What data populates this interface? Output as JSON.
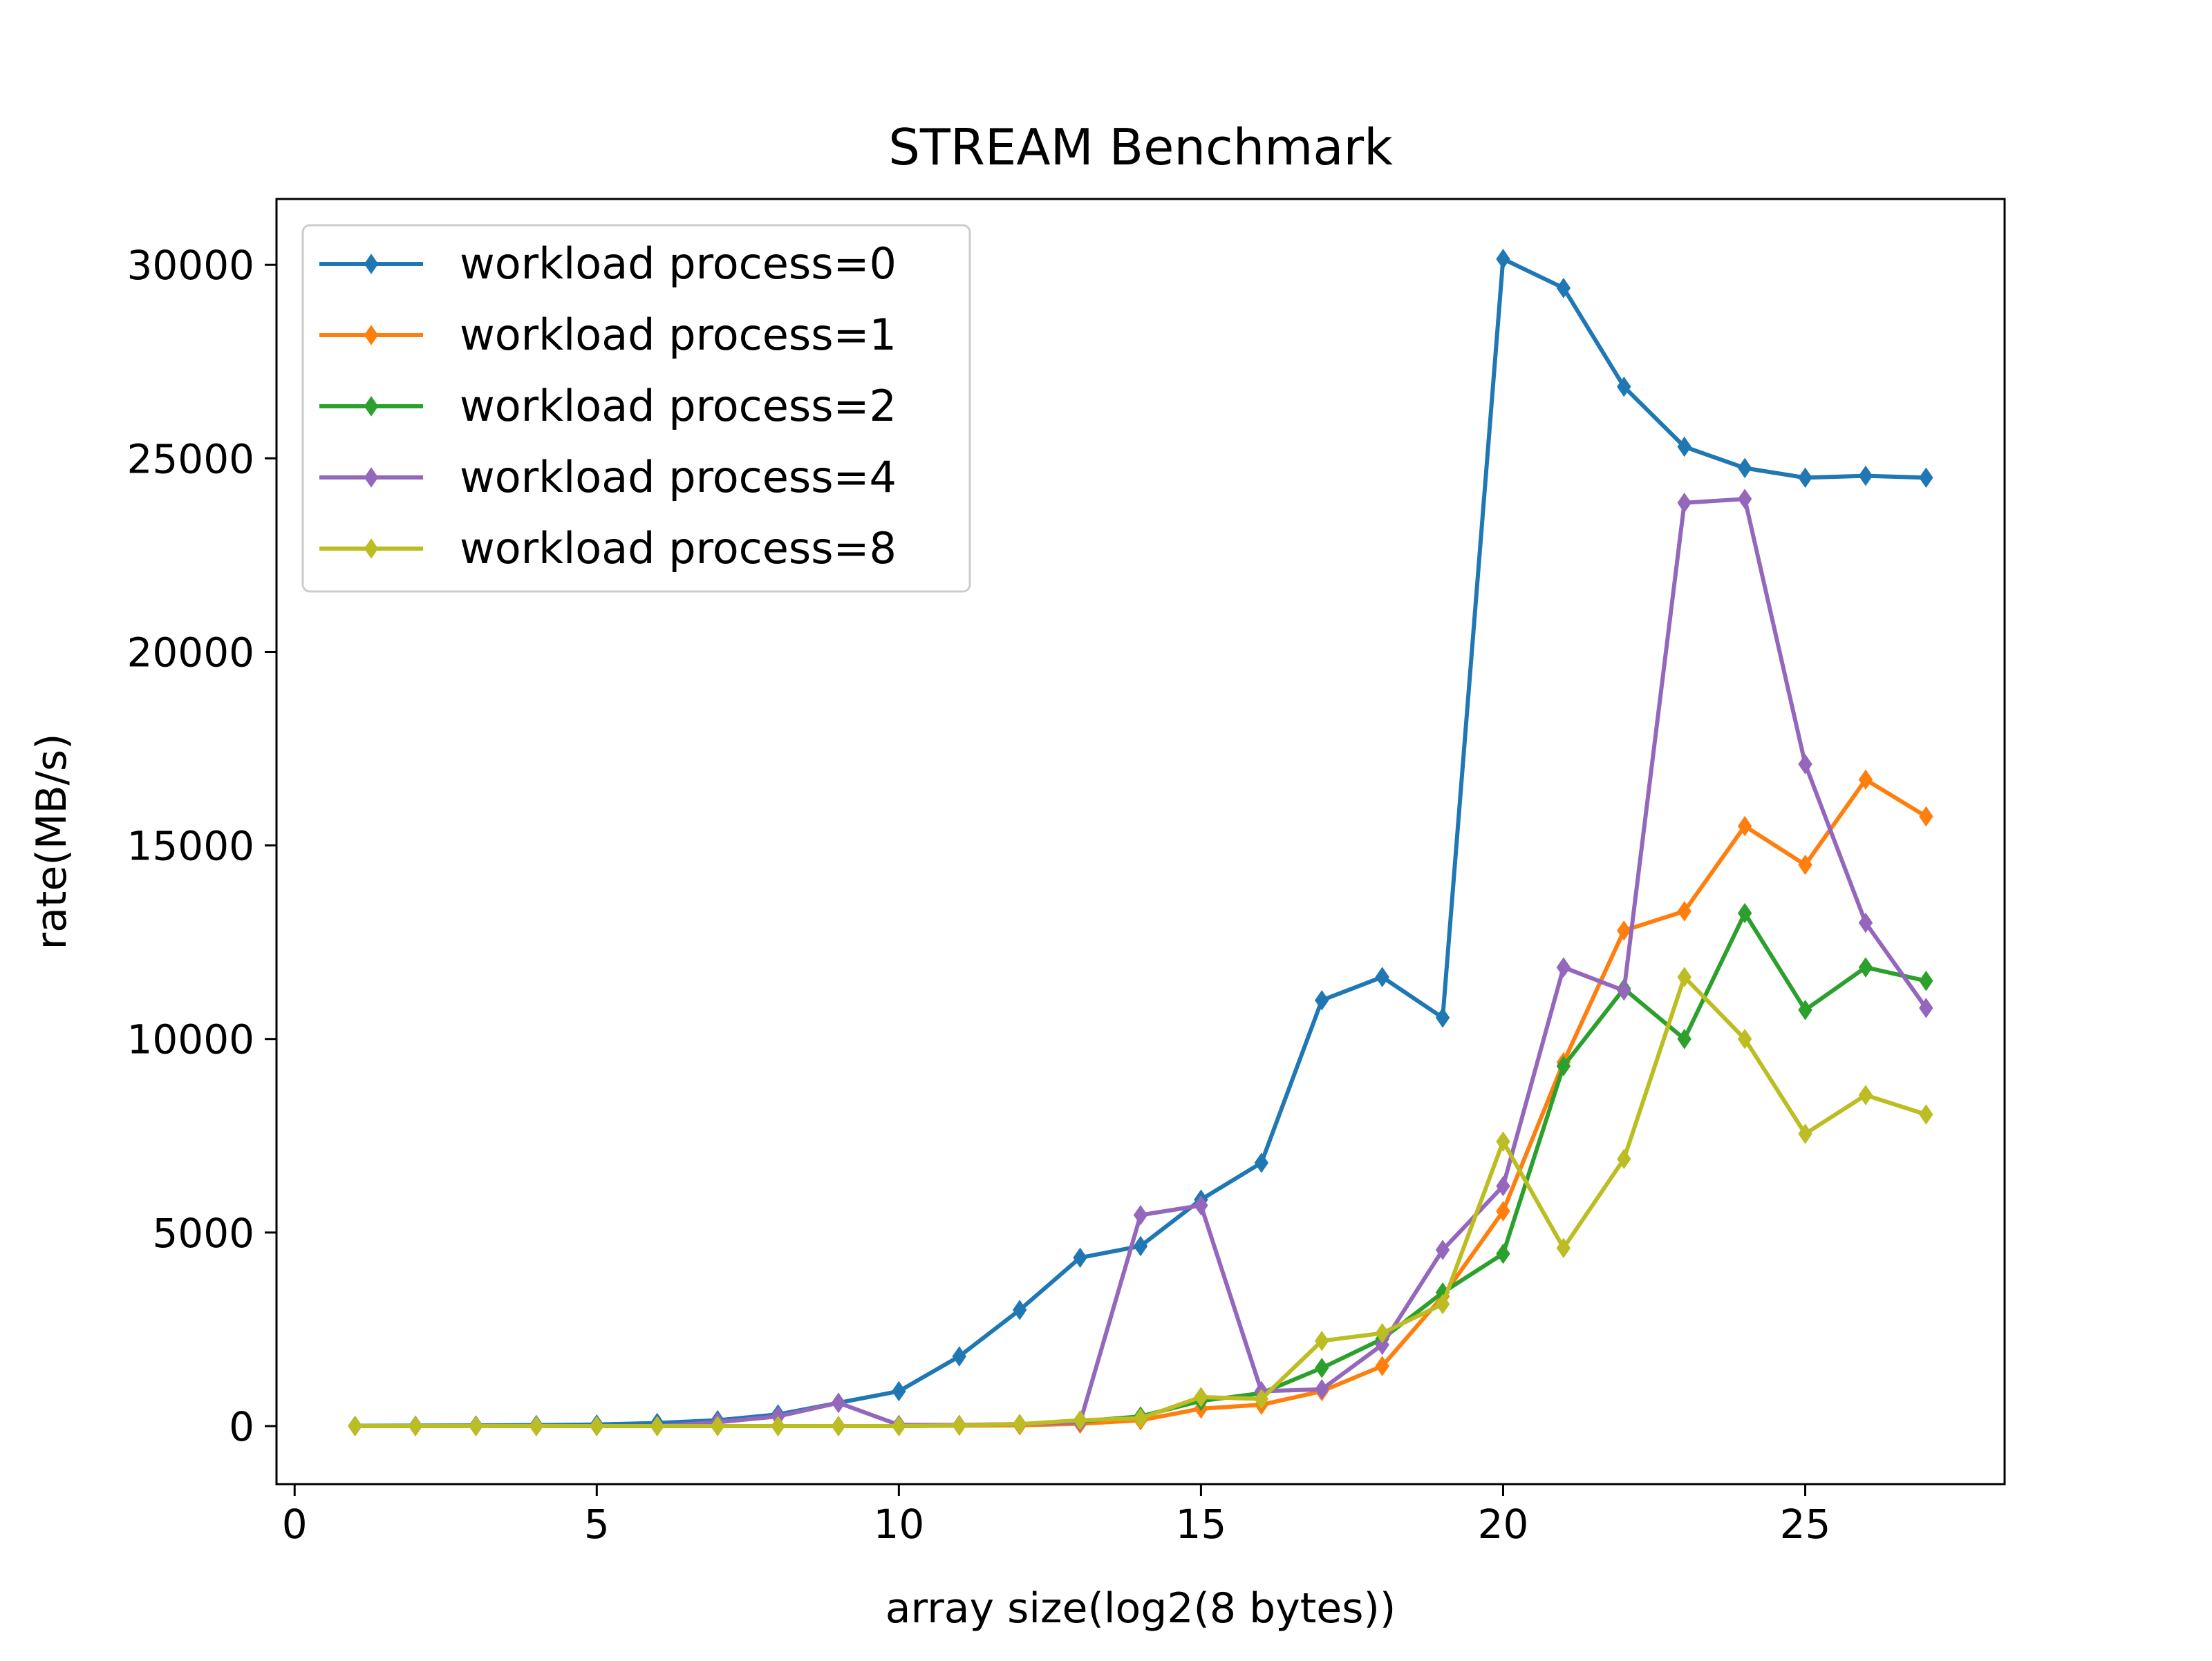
{
  "chart_data": {
    "type": "line",
    "title": "STREAM Benchmark",
    "xlabel": "array size(log2(8 bytes))",
    "ylabel": "rate(MB/s)",
    "xlim": [
      -0.3,
      28.3
    ],
    "ylim": [
      -1500,
      31700
    ],
    "xticks": [
      0,
      5,
      10,
      15,
      20,
      25
    ],
    "yticks": [
      0,
      5000,
      10000,
      15000,
      20000,
      25000,
      30000
    ],
    "grid": false,
    "legend_position": "upper-left",
    "marker": "thin-diamond",
    "x": [
      1,
      2,
      3,
      4,
      5,
      6,
      7,
      8,
      9,
      10,
      11,
      12,
      13,
      14,
      15,
      16,
      17,
      18,
      19,
      20,
      21,
      22,
      23,
      24,
      25,
      26,
      27
    ],
    "series": [
      {
        "name": "workload process=0",
        "color": "#1f77b4",
        "values": [
          5,
          10,
          15,
          25,
          40,
          80,
          150,
          300,
          600,
          900,
          1800,
          3000,
          4350,
          4650,
          5850,
          6800,
          11000,
          11600,
          10550,
          30150,
          29400,
          26850,
          25300,
          24750,
          24500,
          24550,
          24500
        ]
      },
      {
        "name": "workload process=1",
        "color": "#ff7f0e",
        "values": [
          0,
          0,
          0,
          0,
          0,
          0,
          0,
          0,
          0,
          0,
          10,
          20,
          60,
          150,
          450,
          550,
          900,
          1550,
          3350,
          5550,
          9400,
          12800,
          13300,
          15500,
          14500,
          16700,
          15750
        ]
      },
      {
        "name": "workload process=2",
        "color": "#2ca02c",
        "values": [
          0,
          0,
          0,
          0,
          0,
          0,
          0,
          0,
          0,
          0,
          20,
          50,
          120,
          250,
          650,
          850,
          1500,
          2250,
          3450,
          4450,
          9300,
          11300,
          10000,
          13250,
          10750,
          11850,
          11500
        ]
      },
      {
        "name": "workload process=4",
        "color": "#9467bd",
        "values": [
          0,
          0,
          0,
          0,
          0,
          0,
          100,
          250,
          600,
          30,
          30,
          50,
          100,
          5450,
          5700,
          900,
          950,
          2100,
          4550,
          6200,
          11850,
          11250,
          23850,
          23950,
          17100,
          13000,
          10800
        ]
      },
      {
        "name": "workload process=8",
        "color": "#bcbd22",
        "values": [
          0,
          0,
          0,
          0,
          0,
          0,
          0,
          0,
          0,
          0,
          20,
          50,
          150,
          200,
          750,
          700,
          2200,
          2400,
          3150,
          7350,
          4600,
          6900,
          11600,
          10000,
          7550,
          8550,
          8050
        ]
      }
    ]
  }
}
